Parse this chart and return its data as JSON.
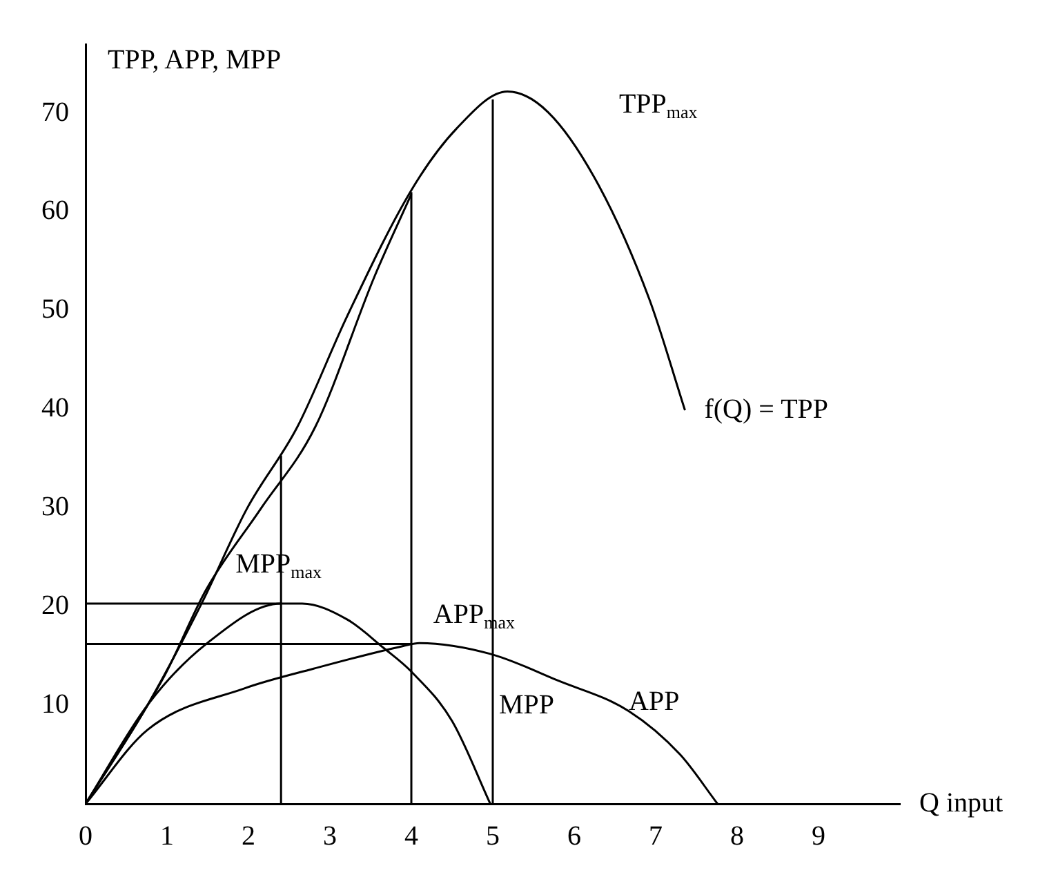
{
  "chart_data": {
    "type": "line",
    "ylabel": "TPP, APP, MPP",
    "xlabel": "Q input",
    "xlim": [
      0,
      10
    ],
    "xticks": [
      0,
      1,
      2,
      3,
      4,
      5,
      6,
      7,
      8,
      9
    ],
    "ylim": [
      0,
      77
    ],
    "yticks": [
      10,
      20,
      30,
      40,
      50,
      60,
      70
    ],
    "series": [
      {
        "color": "#000000",
        "x": [
          0,
          0.76,
          1.43,
          1.98,
          2.6,
          3.21,
          4.0,
          4.55,
          5.18,
          5.68,
          6.3,
          6.92,
          7.36
        ],
        "values": [
          0,
          10,
          20.4,
          29.9,
          38.2,
          49.4,
          62.2,
          68.4,
          72.2,
          70.1,
          62.7,
          51.2,
          39.9
        ]
      },
      {
        "color": "#000000",
        "x": [
          0,
          0.97,
          1.48,
          2.15,
          2.82,
          3.55,
          4.0
        ],
        "values": [
          0,
          13,
          21.7,
          29.9,
          38.2,
          53.5,
          61.8
        ]
      },
      {
        "color": "#000000",
        "x": [
          0,
          0.76,
          1.48,
          2.4,
          2.66,
          3.21,
          3.66,
          4.0,
          4.5,
          4.97
        ],
        "values": [
          0,
          10,
          16.2,
          20.3,
          20.3,
          18.7,
          15.8,
          13.4,
          8.4,
          0
        ]
      },
      {
        "color": "#000000",
        "x": [
          0,
          0.76,
          1.95,
          2.8,
          3.9,
          4.1,
          4.97,
          5.8,
          6.67,
          7.3,
          7.76
        ],
        "values": [
          0,
          7.5,
          11.7,
          13.7,
          16,
          16.3,
          15.2,
          12.5,
          9.4,
          5,
          0
        ]
      },
      {
        "color": "#000000",
        "x": [
          2.4,
          2.4
        ],
        "values": [
          0,
          35.3
        ]
      },
      {
        "color": "#000000",
        "x": [
          4,
          4
        ],
        "values": [
          0,
          62
        ]
      },
      {
        "color": "#000000",
        "x": [
          5,
          5
        ],
        "values": [
          0,
          71.4
        ]
      },
      {
        "color": "#000000",
        "x": [
          0,
          2.4
        ],
        "values": [
          20.3,
          20.3
        ]
      },
      {
        "color": "#000000",
        "x": [
          0,
          4
        ],
        "values": [
          16.2,
          16.2
        ]
      }
    ],
    "annotations": [
      "TPP$_{max}$",
      {
        "text": "MPP$_{max}$",
        "x": 2.4,
        "y": 20.3
      },
      {
        "text": "APP$_{max}$",
        "x": 4.1,
        "y": 16.3
      },
      {
        "text": "MPP",
        "x": 4.5,
        "y": 8.4
      },
      {
        "text": "APP",
        "x": 6.67,
        "y": 9.4
      },
      {
        "text": "f(Q) = TPP",
        "x": 7.36,
        "y": 39.9
      }
    ]
  }
}
